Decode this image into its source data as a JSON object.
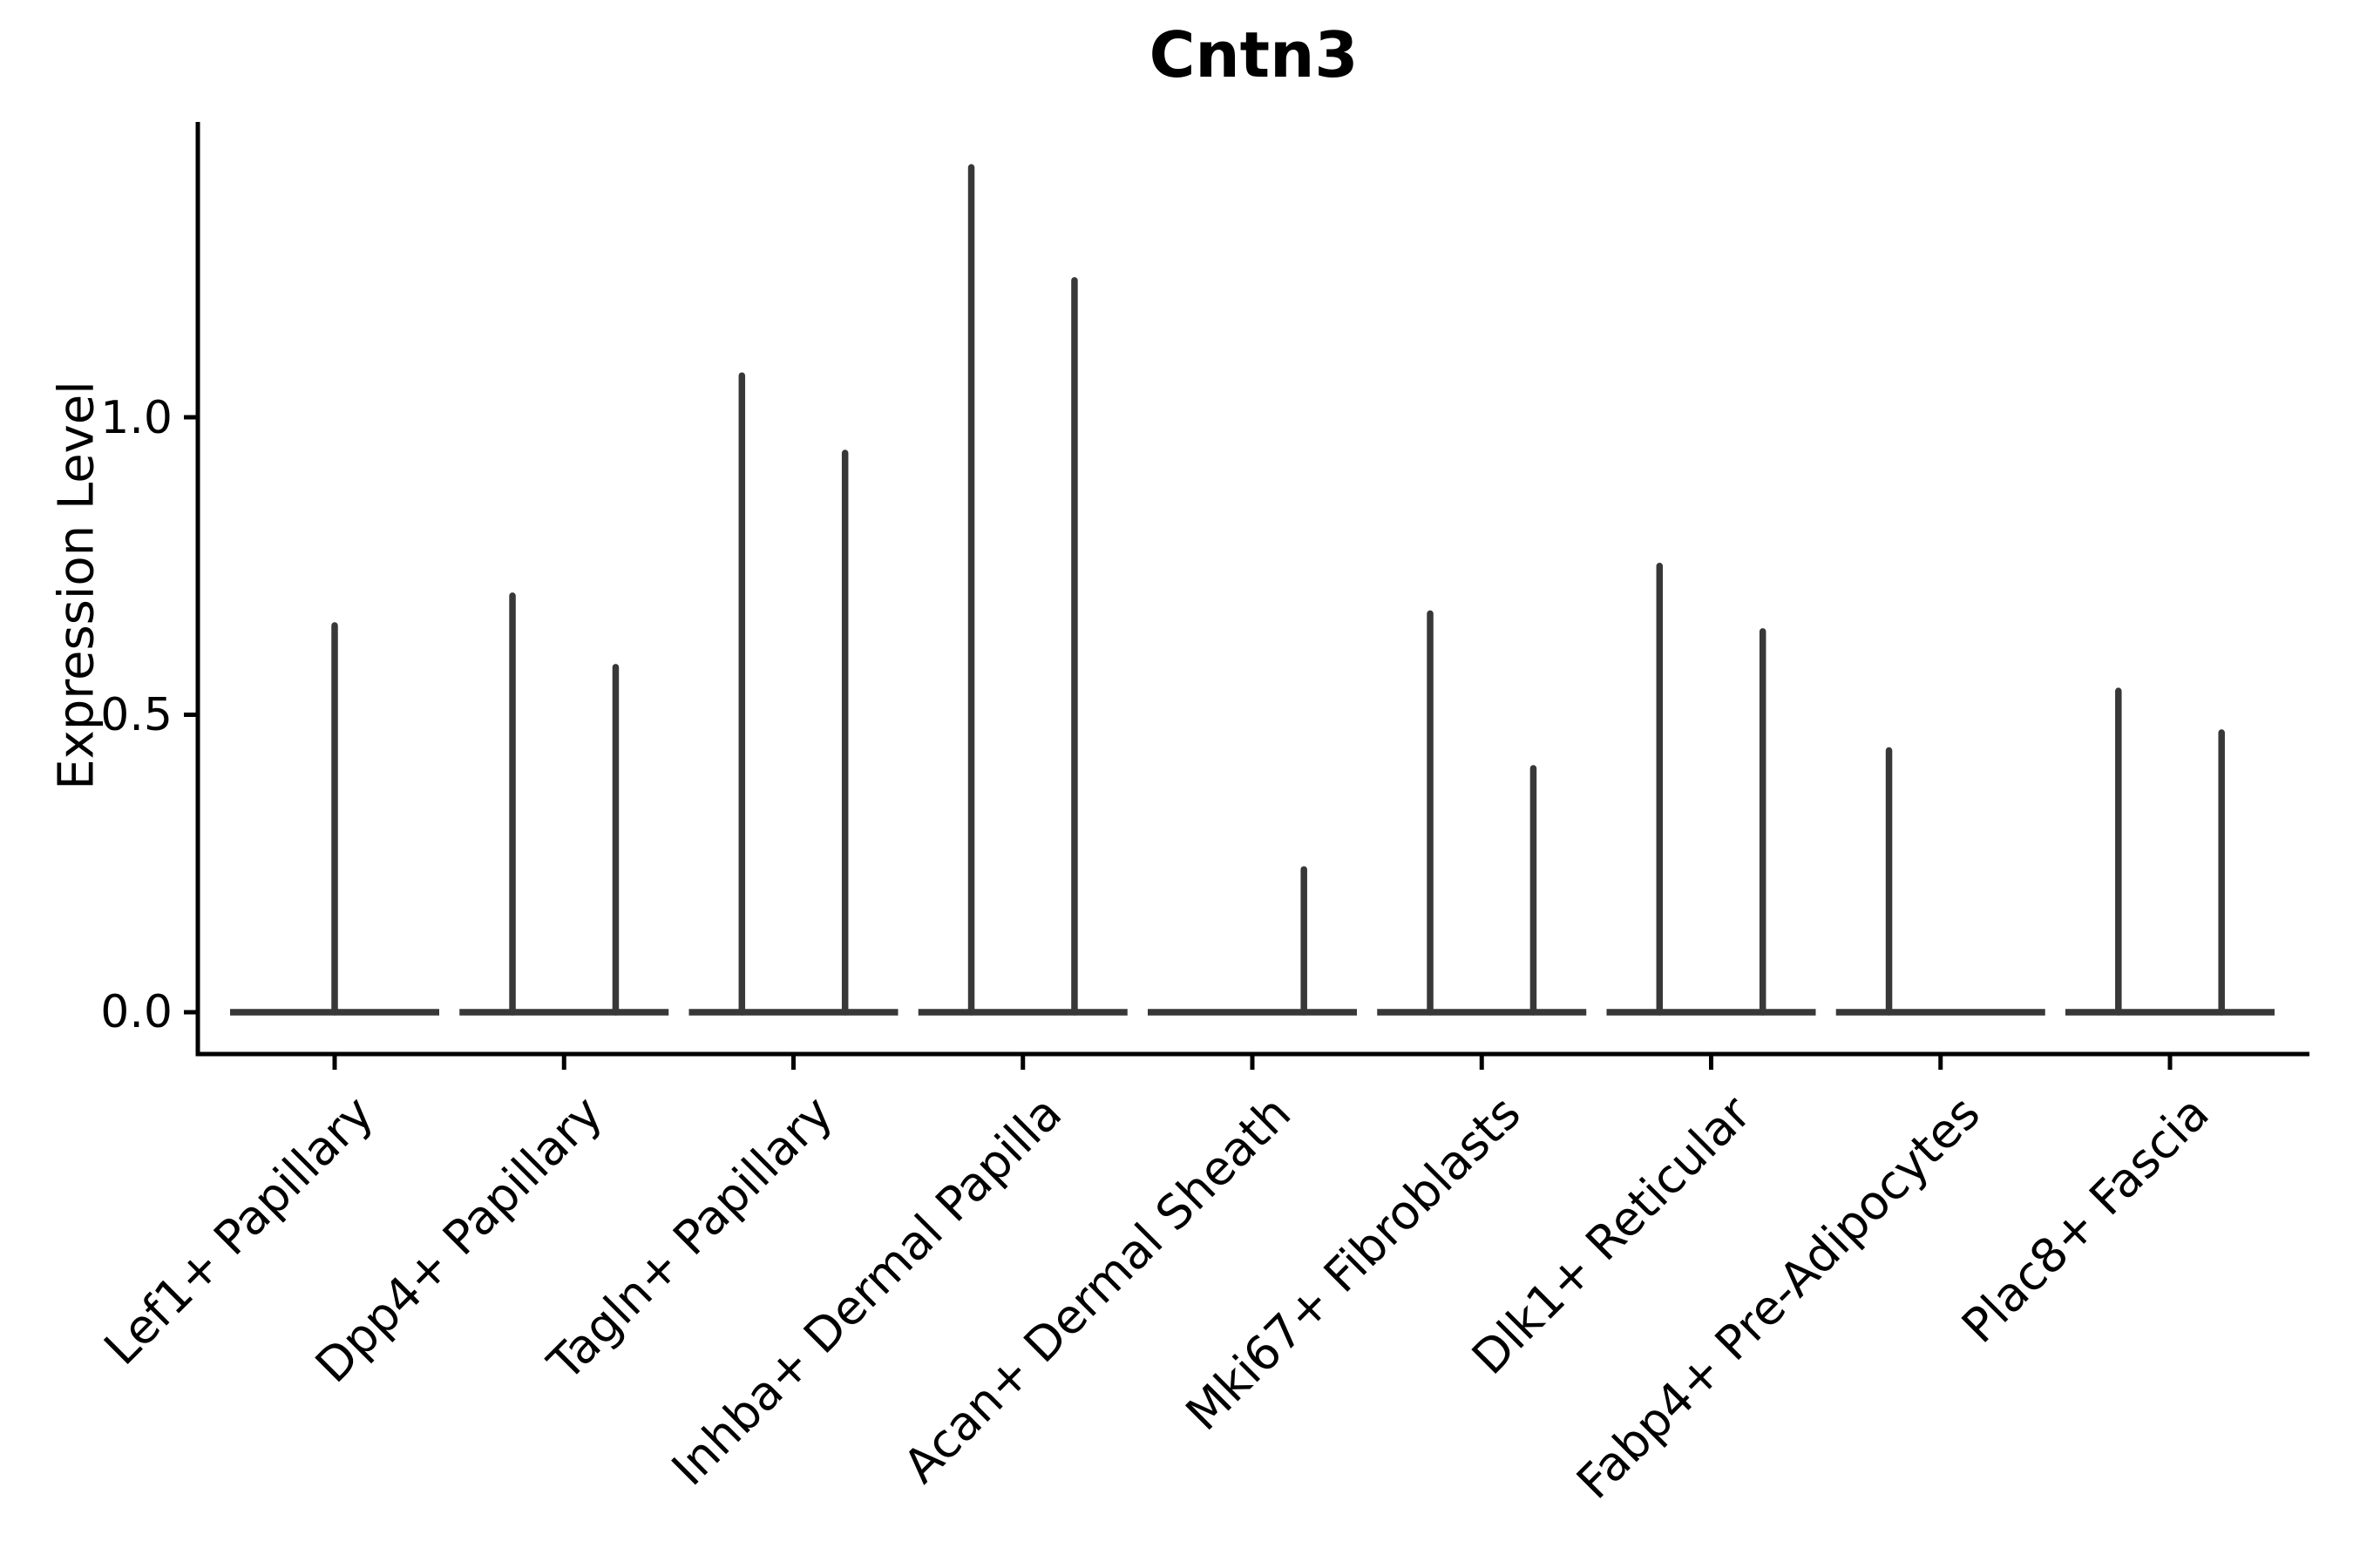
{
  "title": "Cntn3",
  "axes": {
    "ylabel": "Expression Level",
    "yticks": [
      "0.0",
      "0.5",
      "1.0"
    ]
  },
  "chart_data": {
    "type": "violin",
    "title": "Cntn3",
    "xlabel": "",
    "ylabel": "Expression Level",
    "ylim": [
      -0.07,
      1.5
    ],
    "ytick_values": [
      0.0,
      0.5,
      1.0
    ],
    "ytick_labels": [
      "0.0",
      "0.5",
      "1.0"
    ],
    "grid": false,
    "legend": "none",
    "x_tick_rotation": 45,
    "style": "collapsed violins: wide flat base at expression 0 with needle-thin density spikes; dark gray on white, no fill color",
    "categories": [
      "Lef1+ Papillary",
      "Dpp4+ Papillary",
      "Tagln+ Papillary",
      "Inhba+ Dermal Papilla",
      "Acan+ Dermal Sheath",
      "Mki67+ Fibroblasts",
      "Dlk1+ Reticular",
      "Fabp4+ Pre-Adipocytes",
      "Plac8+ Fascia"
    ],
    "violins": [
      {
        "category": "Lef1+ Papillary",
        "baseline_value": 0.0,
        "spikes": [
          {
            "position": "center",
            "peak": 0.65
          }
        ]
      },
      {
        "category": "Dpp4+ Papillary",
        "baseline_value": 0.0,
        "spikes": [
          {
            "position": "left",
            "peak": 0.7
          },
          {
            "position": "right",
            "peak": 0.58
          }
        ]
      },
      {
        "category": "Tagln+ Papillary",
        "baseline_value": 0.0,
        "spikes": [
          {
            "position": "left",
            "peak": 1.07
          },
          {
            "position": "right",
            "peak": 0.94
          }
        ]
      },
      {
        "category": "Inhba+ Dermal Papilla",
        "baseline_value": 0.0,
        "spikes": [
          {
            "position": "left",
            "peak": 1.42
          },
          {
            "position": "right",
            "peak": 1.23
          }
        ]
      },
      {
        "category": "Acan+ Dermal Sheath",
        "baseline_value": 0.0,
        "spikes": [
          {
            "position": "right",
            "peak": 0.24
          }
        ]
      },
      {
        "category": "Mki67+ Fibroblasts",
        "baseline_value": 0.0,
        "spikes": [
          {
            "position": "left",
            "peak": 0.67
          },
          {
            "position": "right",
            "peak": 0.41
          }
        ]
      },
      {
        "category": "Dlk1+ Reticular",
        "baseline_value": 0.0,
        "spikes": [
          {
            "position": "left",
            "peak": 0.75
          },
          {
            "position": "right",
            "peak": 0.64
          }
        ]
      },
      {
        "category": "Fabp4+ Pre-Adipocytes",
        "baseline_value": 0.0,
        "spikes": [
          {
            "position": "left",
            "peak": 0.44
          }
        ]
      },
      {
        "category": "Plac8+ Fascia",
        "baseline_value": 0.0,
        "spikes": [
          {
            "position": "left",
            "peak": 0.54
          },
          {
            "position": "right",
            "peak": 0.47
          }
        ]
      }
    ],
    "colors": {
      "violin_stroke": "#383838",
      "axis": "#000000",
      "text": "#000000",
      "background": "#ffffff"
    }
  }
}
